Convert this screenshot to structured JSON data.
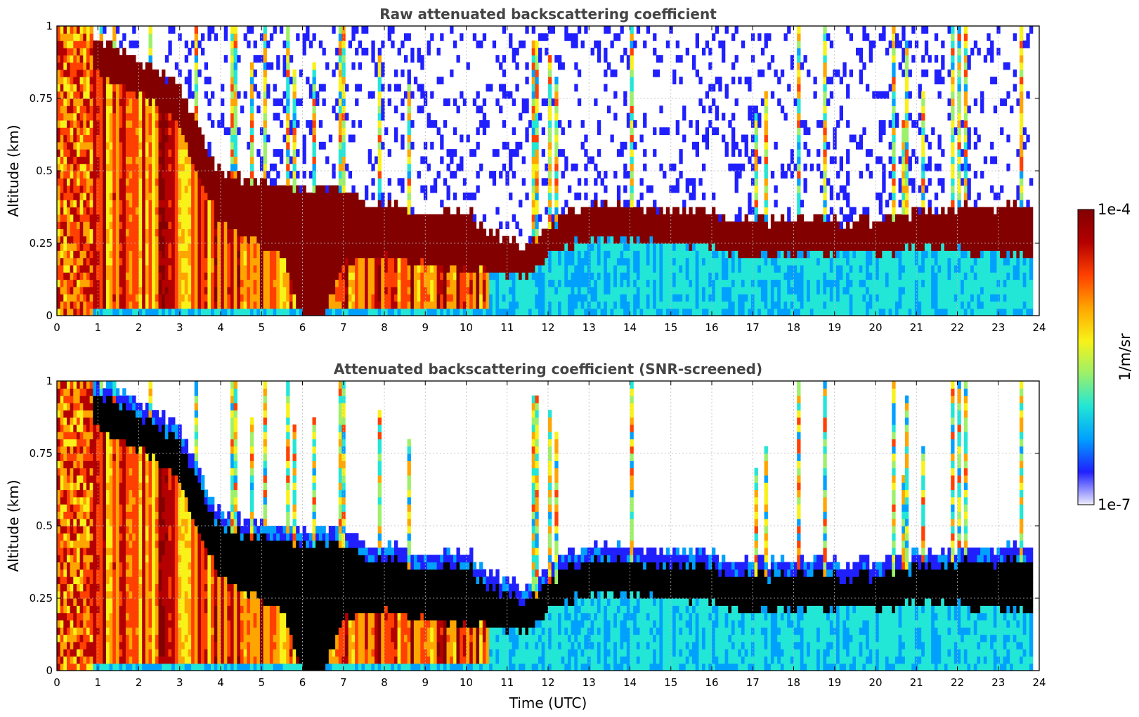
{
  "figure": {
    "colorbar": {
      "max_label": "1e-4",
      "min_label": "1e-7",
      "unit_label": "1/m/sr",
      "scale": "log",
      "range": [
        1e-07,
        0.0001
      ]
    },
    "colormap": [
      "#ececfc",
      "#2020ff",
      "#00a0ff",
      "#22e6d6",
      "#9cf06a",
      "#f8f218",
      "#ffa500",
      "#ff4000",
      "#b40000",
      "#820000"
    ],
    "above_max_color_screened": "#000000"
  },
  "chart_data": [
    {
      "type": "heatmap",
      "title": "Raw attenuated backscattering coefficient",
      "xlabel": "",
      "ylabel": "Altitude (km)",
      "xlim": [
        0,
        24
      ],
      "ylim": [
        0,
        1
      ],
      "xticks": [
        "0",
        "1",
        "2",
        "3",
        "4",
        "5",
        "6",
        "7",
        "8",
        "9",
        "10",
        "11",
        "12",
        "13",
        "14",
        "15",
        "16",
        "17",
        "18",
        "19",
        "20",
        "21",
        "22",
        "23",
        "24"
      ],
      "yticks": [
        "0",
        "0.25",
        "0.5",
        "0.75",
        "1"
      ],
      "grid": true,
      "data_end_hour": 23.8,
      "layer_top_km": {
        "x": [
          0.9,
          1.5,
          2,
          2.5,
          3,
          3.3,
          3.7,
          4,
          4.5,
          5,
          5.5,
          6,
          6.5,
          7,
          7.5,
          8,
          8.5,
          9,
          9.5,
          10,
          10.5,
          11,
          11.5,
          12,
          12.5,
          13,
          13.5,
          14,
          15,
          16,
          16.5,
          17,
          17.5,
          18,
          18.5,
          19,
          19.5,
          20,
          20.5,
          21,
          21.5,
          22,
          22.5,
          23,
          23.5,
          23.8
        ],
        "y": [
          0.95,
          0.93,
          0.88,
          0.84,
          0.78,
          0.7,
          0.56,
          0.5,
          0.47,
          0.48,
          0.44,
          0.43,
          0.44,
          0.43,
          0.4,
          0.39,
          0.37,
          0.36,
          0.36,
          0.37,
          0.3,
          0.25,
          0.24,
          0.3,
          0.36,
          0.38,
          0.38,
          0.37,
          0.36,
          0.36,
          0.34,
          0.33,
          0.32,
          0.33,
          0.34,
          0.33,
          0.33,
          0.33,
          0.34,
          0.35,
          0.36,
          0.37,
          0.38,
          0.37,
          0.38,
          0.36
        ]
      },
      "layer_base_km": {
        "x": [
          0.9,
          1.5,
          2,
          2.5,
          3,
          3.3,
          3.7,
          4,
          4.5,
          5,
          5.5,
          6,
          6.5,
          7,
          7.5,
          8,
          8.5,
          9,
          9.5,
          10,
          10.5,
          11,
          11.5,
          12,
          12.5,
          13,
          13.5,
          14,
          15,
          16,
          16.5,
          17,
          17.5,
          18,
          18.5,
          19,
          19.5,
          20,
          20.5,
          21,
          21.5,
          22,
          22.5,
          23,
          23.5,
          23.8
        ],
        "y": [
          0.85,
          0.8,
          0.77,
          0.72,
          0.66,
          0.55,
          0.4,
          0.33,
          0.28,
          0.24,
          0.22,
          0.0,
          0.0,
          0.18,
          0.2,
          0.2,
          0.19,
          0.18,
          0.17,
          0.16,
          0.15,
          0.14,
          0.13,
          0.2,
          0.24,
          0.27,
          0.27,
          0.26,
          0.25,
          0.24,
          0.22,
          0.2,
          0.21,
          0.22,
          0.22,
          0.22,
          0.22,
          0.22,
          0.22,
          0.23,
          0.23,
          0.23,
          0.22,
          0.22,
          0.21,
          0.2
        ]
      }
    },
    {
      "type": "heatmap",
      "title": "Attenuated backscattering coefficient (SNR-screened)",
      "xlabel": "Time (UTC)",
      "ylabel": "Altitude (km)",
      "xlim": [
        0,
        24
      ],
      "ylim": [
        0,
        1
      ],
      "xticks": [
        "0",
        "1",
        "2",
        "3",
        "4",
        "5",
        "6",
        "7",
        "8",
        "9",
        "10",
        "11",
        "12",
        "13",
        "14",
        "15",
        "16",
        "17",
        "18",
        "19",
        "20",
        "21",
        "22",
        "23",
        "24"
      ],
      "yticks": [
        "0",
        "0.25",
        "0.5",
        "0.75",
        "1"
      ],
      "grid": true,
      "data_end_hour": 23.8
    }
  ]
}
